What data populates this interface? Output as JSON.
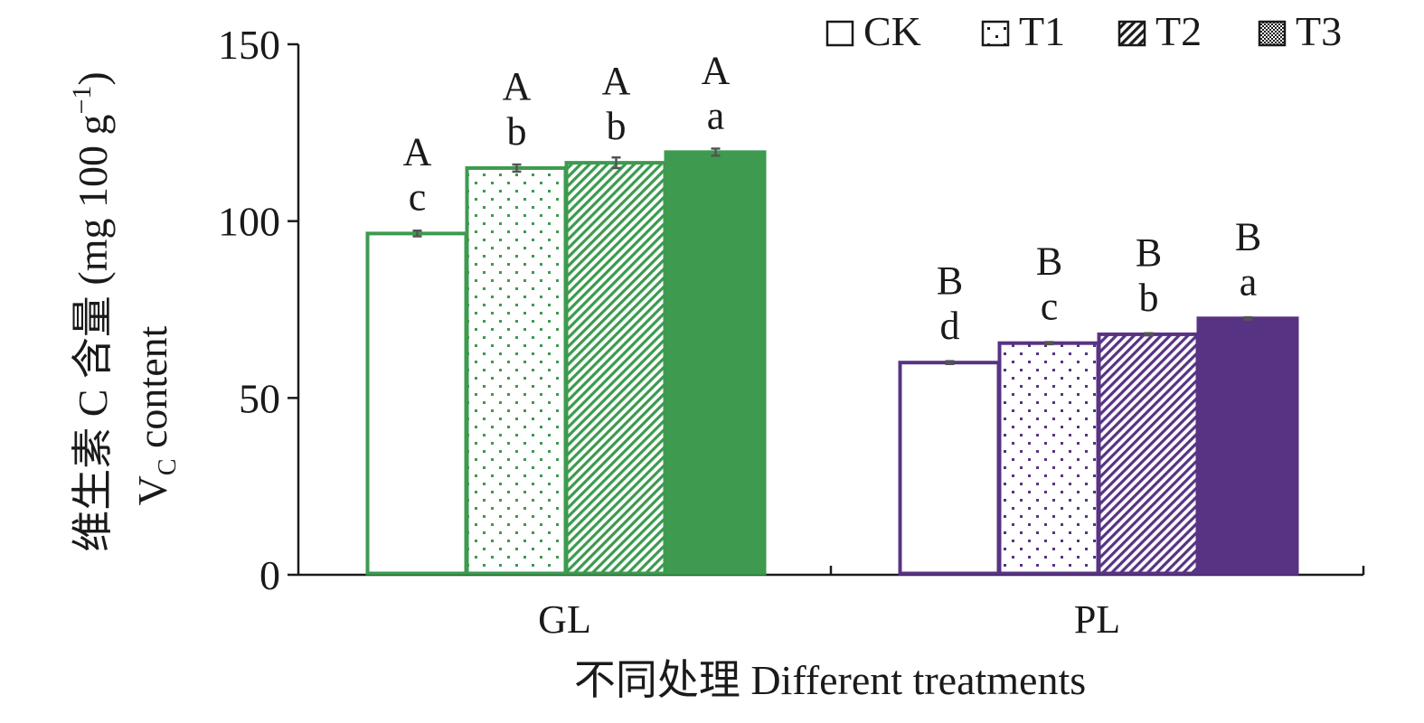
{
  "chart_data": {
    "type": "bar",
    "xlabel": "不同处理 Different treatments",
    "ylabel": {
      "line1_prefix": "维生素 C 含量 (mg 100 g",
      "line1_sup": "−1",
      "line1_suffix": ")",
      "line2_main": "V",
      "line2_sub": "C",
      "line2_suffix": " content"
    },
    "ylim": [
      0,
      150
    ],
    "yticks": [
      "0",
      "50",
      "100",
      "150"
    ],
    "categories": [
      "GL",
      "PL"
    ],
    "grid": false,
    "legend_position": "top-right",
    "series": [
      {
        "name": "CK",
        "pattern": "empty",
        "values": [
          96.5,
          60.0
        ],
        "errors": [
          0.8,
          0.4
        ],
        "upper_labels": [
          "A",
          "B"
        ],
        "lower_labels": [
          "c",
          "d"
        ]
      },
      {
        "name": "T1",
        "pattern": "dots",
        "values": [
          115.0,
          65.5
        ],
        "errors": [
          1.0,
          0.3
        ],
        "upper_labels": [
          "A",
          "B"
        ],
        "lower_labels": [
          "b",
          "c"
        ]
      },
      {
        "name": "T2",
        "pattern": "hatch",
        "values": [
          116.5,
          68.0
        ],
        "errors": [
          1.5,
          0.3
        ],
        "upper_labels": [
          "A",
          "B"
        ],
        "lower_labels": [
          "b",
          "b"
        ]
      },
      {
        "name": "T3",
        "pattern": "solid",
        "values": [
          119.5,
          72.5
        ],
        "errors": [
          1.0,
          0.3
        ],
        "upper_labels": [
          "A",
          "B"
        ],
        "lower_labels": [
          "a",
          "a"
        ]
      }
    ],
    "category_colors": [
      "#3d9a4f",
      "#583384"
    ],
    "errorbar_color": "#555555"
  }
}
